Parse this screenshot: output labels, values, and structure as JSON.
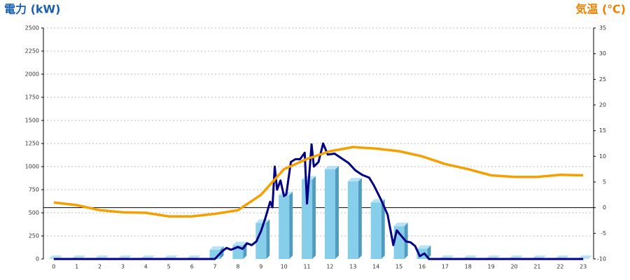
{
  "chart_data": {
    "type": "combo",
    "y_title": "電力 (kW)",
    "y2_title": "気温 (℃)",
    "categories": [
      0,
      1,
      2,
      3,
      4,
      5,
      6,
      7,
      8,
      9,
      10,
      11,
      12,
      13,
      14,
      15,
      16,
      17,
      18,
      19,
      20,
      21,
      22,
      23
    ],
    "xlim": [
      -0.45,
      23.45
    ],
    "ylim": [
      0,
      2500
    ],
    "yticks": [
      0,
      250,
      500,
      750,
      1000,
      1250,
      1500,
      1750,
      2000,
      2250,
      2500
    ],
    "y2lim": [
      -10,
      35
    ],
    "y2ticks": [
      -10,
      -5,
      0,
      5,
      10,
      15,
      20,
      25,
      30,
      35
    ],
    "grid": true,
    "series": [
      {
        "type": "bar",
        "color": "#87ceeb",
        "values": [
          0,
          0,
          0,
          0,
          0,
          0,
          0,
          100,
          150,
          390,
          690,
          860,
          970,
          840,
          610,
          355,
          110,
          0,
          0,
          0,
          0,
          0,
          0,
          0
        ]
      },
      {
        "type": "line",
        "color": "#000080",
        "x": [
          0,
          7.0,
          7.3,
          7.5,
          7.7,
          8.0,
          8.2,
          8.4,
          8.6,
          8.8,
          9.0,
          9.2,
          9.4,
          9.5,
          9.6,
          9.7,
          9.85,
          10.0,
          10.1,
          10.3,
          10.5,
          10.7,
          10.9,
          11.0,
          11.2,
          11.3,
          11.5,
          11.7,
          11.9,
          12.2,
          12.5,
          12.8,
          13.1,
          13.4,
          13.7,
          13.9,
          14.2,
          14.5,
          14.75,
          14.9,
          15.1,
          15.3,
          15.5,
          15.7,
          15.9,
          16.1,
          16.3,
          23
        ],
        "values": [
          0,
          0,
          80,
          120,
          100,
          130,
          110,
          170,
          150,
          190,
          300,
          450,
          620,
          560,
          1000,
          750,
          850,
          680,
          700,
          1050,
          1080,
          1080,
          1150,
          600,
          1240,
          1000,
          1050,
          1250,
          1130,
          1140,
          1090,
          1040,
          960,
          910,
          880,
          800,
          650,
          480,
          150,
          310,
          250,
          190,
          180,
          140,
          30,
          60,
          0,
          0
        ]
      },
      {
        "type": "line",
        "axis": "y2",
        "color": "#f5a000",
        "values": [
          1.0,
          0.5,
          -0.5,
          -0.9,
          -1.0,
          -1.7,
          -1.7,
          -1.2,
          -0.5,
          2.5,
          7.5,
          9.5,
          11,
          11.8,
          11.5,
          11,
          10,
          8.5,
          7.5,
          6.3,
          6,
          6,
          6.4,
          6.3
        ]
      }
    ]
  }
}
